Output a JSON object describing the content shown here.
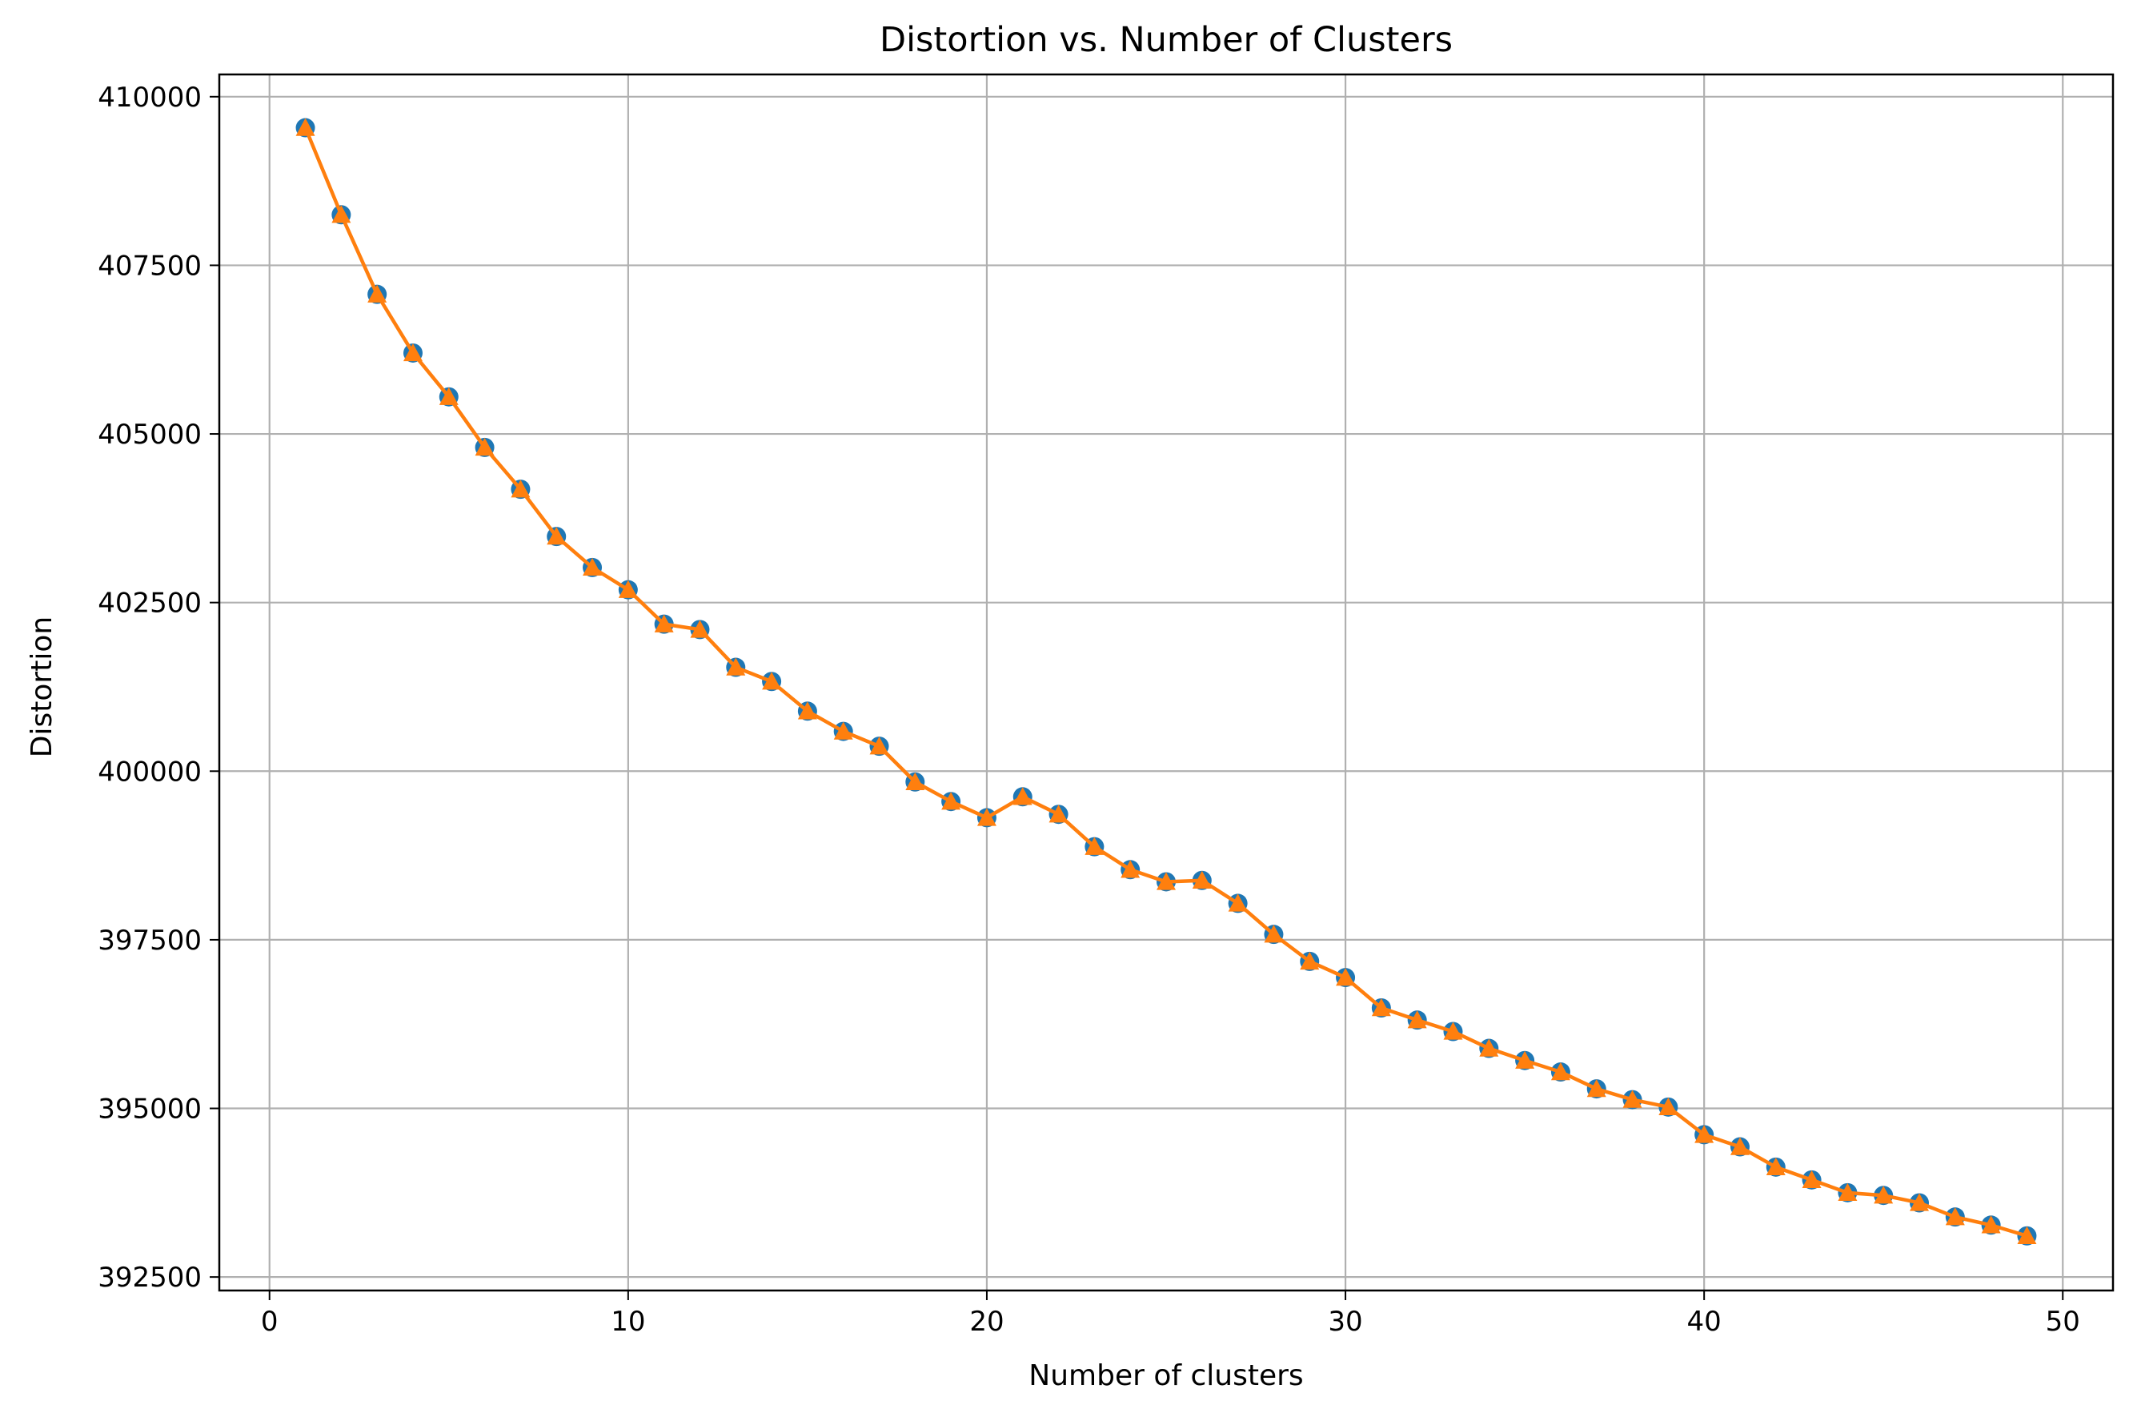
{
  "chart_data": {
    "type": "line",
    "title": "Distortion vs. Number of Clusters",
    "xlabel": "Number of clusters",
    "ylabel": "Distortion",
    "xlim": [
      -1.4,
      51.4
    ],
    "ylim": [
      392300,
      410330
    ],
    "grid": true,
    "xticks": [
      0,
      10,
      20,
      30,
      40,
      50
    ],
    "yticks": [
      392500,
      395000,
      397500,
      400000,
      402500,
      405000,
      407500,
      410000
    ],
    "x": [
      1,
      2,
      3,
      4,
      5,
      6,
      7,
      8,
      9,
      10,
      11,
      12,
      13,
      14,
      15,
      16,
      17,
      18,
      19,
      20,
      21,
      22,
      23,
      24,
      25,
      26,
      27,
      28,
      29,
      30,
      31,
      32,
      33,
      34,
      35,
      36,
      37,
      38,
      39,
      40,
      41,
      42,
      43,
      44,
      45,
      46,
      47,
      48,
      49
    ],
    "series": [
      {
        "name": "circle markers",
        "color": "#1f77b4",
        "marker": "circle",
        "line": false,
        "values": [
          409540,
          408250,
          407070,
          406200,
          405550,
          404800,
          404180,
          403480,
          403020,
          402690,
          402180,
          402100,
          401540,
          401330,
          400890,
          400590,
          400370,
          399840,
          399550,
          399310,
          399620,
          399360,
          398880,
          398540,
          398360,
          398380,
          398040,
          397580,
          397180,
          396940,
          396490,
          396310,
          396140,
          395890,
          395710,
          395540,
          395290,
          395130,
          395020,
          394610,
          394430,
          394130,
          393940,
          393750,
          393710,
          393600,
          393390,
          393270,
          393110
        ]
      },
      {
        "name": "triangle line",
        "color": "#ff7f0e",
        "marker": "triangle",
        "line": true,
        "values": [
          409540,
          408250,
          407070,
          406200,
          405550,
          404800,
          404180,
          403480,
          403020,
          402690,
          402180,
          402100,
          401540,
          401330,
          400890,
          400590,
          400370,
          399840,
          399550,
          399310,
          399620,
          399360,
          398880,
          398540,
          398360,
          398380,
          398040,
          397580,
          397180,
          396940,
          396490,
          396310,
          396140,
          395890,
          395710,
          395540,
          395290,
          395130,
          395020,
          394610,
          394430,
          394130,
          393940,
          393750,
          393710,
          393600,
          393390,
          393270,
          393110
        ]
      }
    ]
  }
}
